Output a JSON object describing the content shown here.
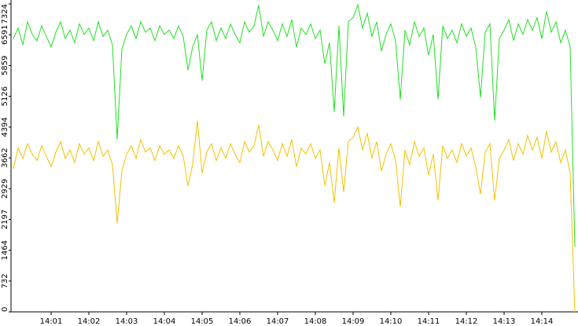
{
  "chart_data": {
    "type": "line",
    "categories": [
      null,
      null,
      null,
      null,
      null,
      null,
      null,
      null,
      "14:01",
      null,
      null,
      null,
      null,
      null,
      null,
      null,
      "14:02",
      null,
      null,
      null,
      null,
      null,
      null,
      null,
      "14:03",
      null,
      null,
      null,
      null,
      null,
      null,
      null,
      "14:04",
      null,
      null,
      null,
      null,
      null,
      null,
      null,
      "14:05",
      null,
      null,
      null,
      null,
      null,
      null,
      null,
      "14:06",
      null,
      null,
      null,
      null,
      null,
      null,
      null,
      "14:07",
      null,
      null,
      null,
      null,
      null,
      null,
      null,
      "14:08",
      null,
      null,
      null,
      null,
      null,
      null,
      null,
      "14:09",
      null,
      null,
      null,
      null,
      null,
      null,
      null,
      "14:10",
      null,
      null,
      null,
      null,
      null,
      null,
      null,
      "14:11",
      null,
      null,
      null,
      null,
      null,
      null,
      null,
      "14:12",
      null,
      null,
      null,
      null,
      null,
      null,
      null,
      "14:13",
      null,
      null,
      null,
      null,
      null,
      null,
      null,
      "14:14",
      null,
      null,
      null,
      null,
      null,
      null,
      null
    ],
    "series": [
      {
        "color": "#22e022",
        "values": [
          6500,
          6750,
          6350,
          6900,
          6600,
          6450,
          6800,
          6550,
          6300,
          6650,
          6900,
          6500,
          6700,
          6400,
          6850,
          6600,
          6750,
          6450,
          6900,
          6550,
          6700,
          6350,
          4100,
          6250,
          6600,
          6800,
          6500,
          6900,
          6650,
          6750,
          6450,
          6800,
          6600,
          6700,
          6500,
          6800,
          6550,
          5750,
          6300,
          6600,
          5500,
          6700,
          6900,
          6450,
          6750,
          6500,
          6850,
          6600,
          6400,
          6900,
          6650,
          6800,
          7300,
          6550,
          6900,
          6700,
          6450,
          6850,
          6550,
          6950,
          6300,
          6750,
          6600,
          6850,
          6500,
          6700,
          5900,
          6400,
          4750,
          6800,
          4650,
          6900,
          7000,
          7300,
          6750,
          7100,
          6550,
          6900,
          6200,
          6600,
          6850,
          6450,
          5050,
          6700,
          6350,
          6900,
          6550,
          6750,
          6100,
          6600,
          5050,
          6800,
          6500,
          6700,
          6400,
          6850,
          6550,
          6750,
          6300,
          5100,
          6650,
          6850,
          4550,
          6500,
          6700,
          6950,
          6450,
          6850,
          6600,
          6950,
          6700,
          7000,
          6500,
          7150,
          6650,
          6900,
          6400,
          6700,
          6300,
          1550
        ]
      },
      {
        "color": "#f2c200",
        "values": [
          3400,
          3900,
          3650,
          4000,
          3750,
          3600,
          3950,
          3700,
          3450,
          3800,
          4050,
          3650,
          3850,
          3550,
          4000,
          3750,
          3900,
          3600,
          4050,
          3700,
          3850,
          3500,
          2100,
          3350,
          3750,
          3950,
          3650,
          4100,
          3800,
          3900,
          3600,
          3950,
          3750,
          3850,
          3650,
          3950,
          3700,
          3000,
          3500,
          4550,
          3300,
          3800,
          4000,
          3600,
          3900,
          3650,
          4000,
          3750,
          3550,
          4050,
          3800,
          3950,
          4450,
          3700,
          4050,
          3850,
          3600,
          4000,
          3700,
          4100,
          3450,
          3900,
          3750,
          4000,
          3650,
          3850,
          3000,
          3550,
          2600,
          3900,
          2850,
          4050,
          4150,
          4400,
          3850,
          4250,
          3650,
          4050,
          3350,
          3750,
          4000,
          3600,
          2500,
          3850,
          3500,
          4050,
          3700,
          3900,
          3250,
          3750,
          2650,
          3950,
          3650,
          3850,
          3550,
          4000,
          3700,
          3900,
          3450,
          2800,
          3800,
          4000,
          2650,
          3650,
          3850,
          4100,
          3600,
          4000,
          3750,
          4200,
          3850,
          4150,
          3650,
          4300,
          3800,
          4050,
          3550,
          3850,
          3300,
          0
        ]
      }
    ],
    "ylim": [
      0,
      7324
    ],
    "yticks": [
      0,
      732,
      1464,
      2197,
      2929,
      3662,
      4394,
      5126,
      5859,
      6591,
      7324
    ]
  }
}
